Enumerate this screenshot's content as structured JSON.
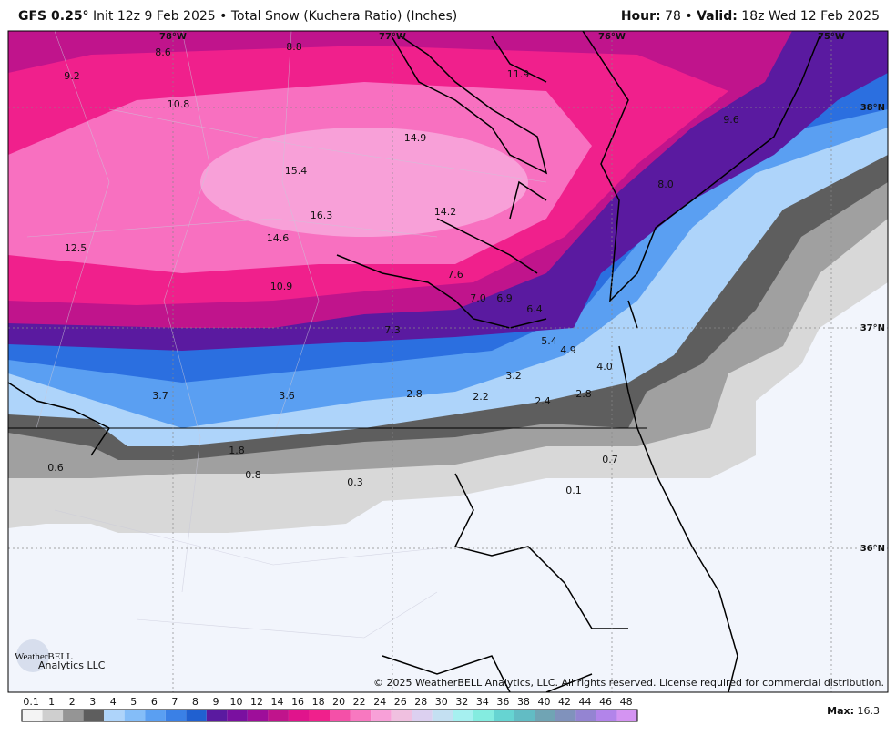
{
  "header": {
    "model": "GFS 0.25°",
    "description": "Init 12z 9 Feb 2025 • Total Snow (Kuchera Ratio) (Inches)",
    "hour_label": "Hour:",
    "hour_value": "78",
    "separator": "•",
    "valid_label": "Valid:",
    "valid_value": "18z Wed 12 Feb 2025"
  },
  "map": {
    "longitude_labels": [
      "78°W",
      "77°W",
      "76°W",
      "75°W"
    ],
    "latitude_labels": [
      "38°N",
      "37°N",
      "36°N"
    ],
    "point_values": [
      "9.2",
      "8.6",
      "8.8",
      "11.9",
      "10.8",
      "14.9",
      "9.6",
      "15.4",
      "8.0",
      "16.3",
      "14.2",
      "14.6",
      "12.5",
      "7.6",
      "7.0",
      "6.9",
      "10.9",
      "6.4",
      "7.3",
      "5.4",
      "4.9",
      "4.0",
      "3.2",
      "3.7",
      "3.6",
      "2.8",
      "2.2",
      "2.4",
      "2.8",
      "1.8",
      "0.6",
      "0.8",
      "0.3",
      "0.7",
      "0.1"
    ],
    "logo": "WeatherBELL",
    "logo_sub": "Analytics LLC",
    "copyright": "© 2025 WeatherBELL Analytics, LLC. All rights reserved. License required for commercial distribution."
  },
  "colorbar": {
    "labels": [
      "0.1",
      "1",
      "2",
      "3",
      "4",
      "5",
      "6",
      "7",
      "8",
      "9",
      "10",
      "12",
      "14",
      "16",
      "18",
      "20",
      "22",
      "24",
      "26",
      "28",
      "30",
      "32",
      "34",
      "36",
      "38",
      "40",
      "42",
      "44",
      "46",
      "48"
    ],
    "colors": [
      "#f4f4f4",
      "#cfcfcf",
      "#959595",
      "#5e5e5e",
      "#aed4fa",
      "#84bdf8",
      "#5a9ff2",
      "#3a80e6",
      "#2060d0",
      "#5a1aa0",
      "#7a10a0",
      "#9e0e9a",
      "#c0148c",
      "#e0148c",
      "#f0208c",
      "#f450a8",
      "#f878c0",
      "#f8a0d8",
      "#f0c0e0",
      "#dcd0f0",
      "#c4e0f2",
      "#a6f0f0",
      "#84ece0",
      "#66d4d2",
      "#62bcc4",
      "#70a4b4",
      "#8092bc",
      "#9484d2",
      "#b284ea",
      "#d494f2"
    ]
  },
  "footer": {
    "max_label": "Max:",
    "max_value": "16.3"
  }
}
